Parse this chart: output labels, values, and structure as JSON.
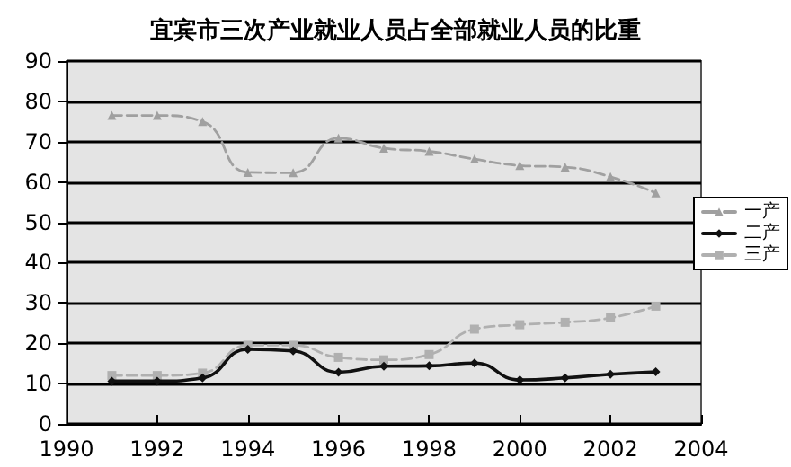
{
  "chart_data": {
    "type": "line",
    "title": "宜宾市三次产业就业人员占全部就业人员的比重",
    "x": [
      1991,
      1992,
      1993,
      1994,
      1995,
      1996,
      1997,
      1998,
      1999,
      2000,
      2001,
      2002,
      2003
    ],
    "series": [
      {
        "name": "一产",
        "color": "#a0a0a0",
        "marker": "triangle",
        "line_style": "dashed",
        "values": [
          76.5,
          76.5,
          75.0,
          62.4,
          62.3,
          70.9,
          68.4,
          67.6,
          65.7,
          64.1,
          63.7,
          61.3,
          57.3
        ]
      },
      {
        "name": "二产",
        "color": "#111111",
        "marker": "diamond",
        "line_style": "solid",
        "values": [
          10.6,
          10.6,
          11.4,
          18.5,
          18.1,
          12.8,
          14.3,
          14.4,
          15.1,
          10.9,
          11.4,
          12.3,
          12.9
        ]
      },
      {
        "name": "三产",
        "color": "#b0b0b0",
        "marker": "square",
        "line_style": "dashed",
        "values": [
          12.0,
          12.0,
          12.6,
          19.5,
          19.5,
          16.5,
          15.9,
          17.2,
          23.5,
          24.6,
          25.2,
          26.3,
          29.2
        ]
      }
    ],
    "xlim": [
      1990,
      2004
    ],
    "xticks": [
      1990,
      1992,
      1994,
      1996,
      1998,
      2000,
      2002,
      2004
    ],
    "ylim": [
      0,
      90
    ],
    "yticks": [
      0,
      10,
      20,
      30,
      40,
      50,
      60,
      70,
      80,
      90
    ],
    "grid": "y",
    "legend": "right"
  }
}
